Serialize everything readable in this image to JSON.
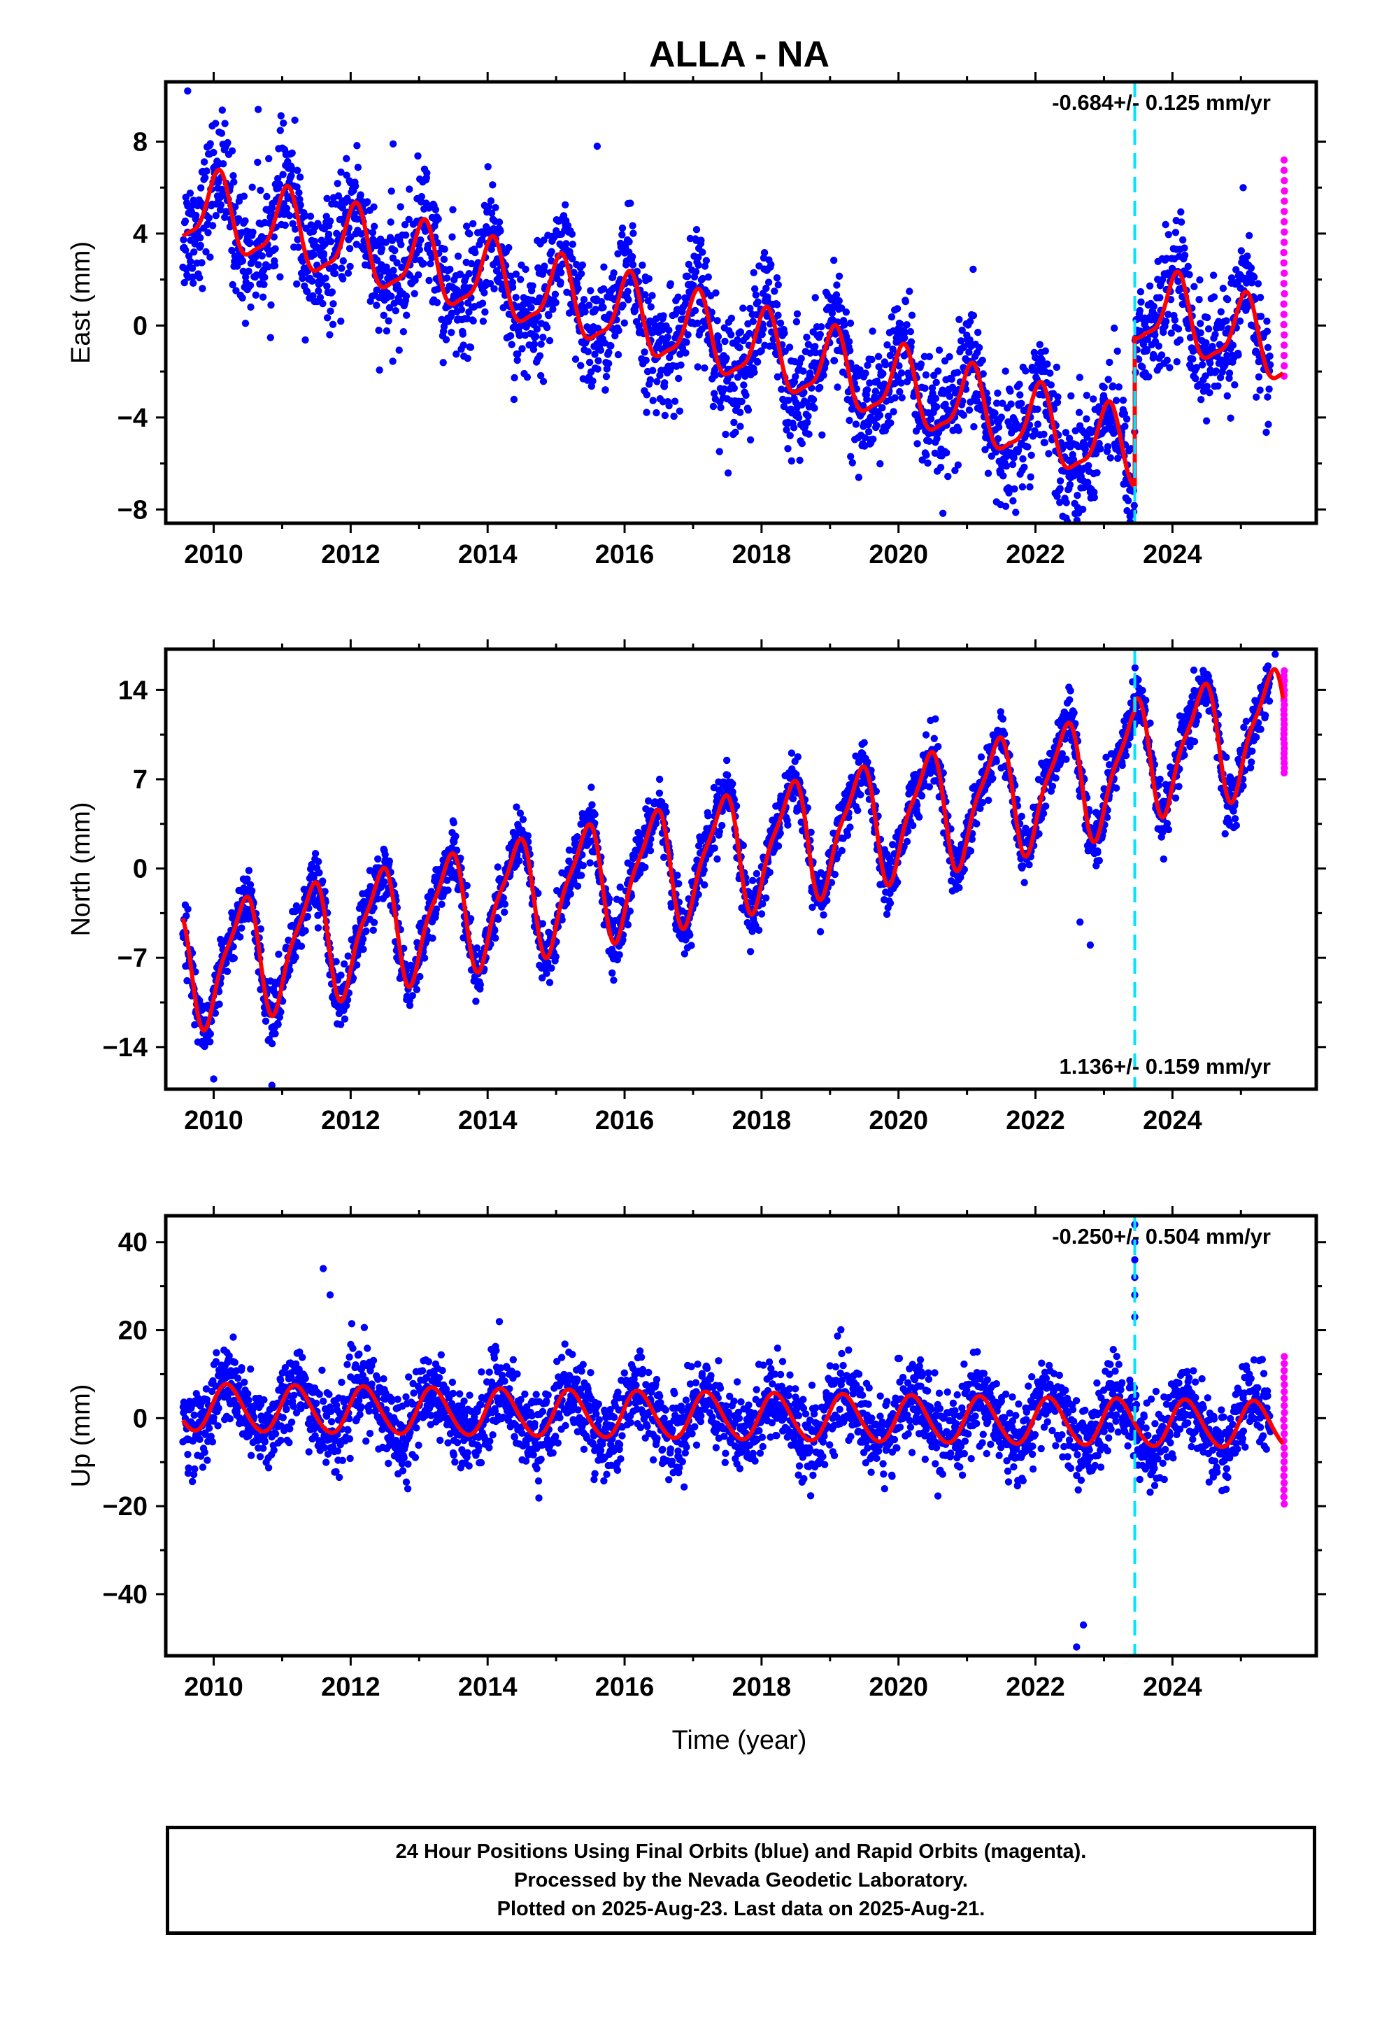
{
  "title": "ALLA - NA",
  "time_label": "Time (year)",
  "footer": {
    "line1": "24 Hour Positions Using Final Orbits (blue) and Rapid Orbits (magenta).",
    "line2": "Processed by the Nevada Geodetic Laboratory.",
    "line3": "Plotted on 2025-Aug-23. Last data on 2025-Aug-21."
  },
  "colors": {
    "final_orbits": "#0000ff",
    "rapid_orbits": "#ff00ff",
    "model_fit": "#ff0000",
    "equipment_change": "#00e5ff"
  },
  "chart_data": [
    {
      "type": "scatter",
      "ylabel": "East (mm)",
      "rate_text": "-0.684+/- 0.125 mm/yr",
      "rate_position": "top-right",
      "xlim": [
        2009.3,
        2026.1
      ],
      "ylim": [
        -8.6,
        10.6
      ],
      "xticks": [
        2010,
        2012,
        2014,
        2016,
        2018,
        2020,
        2022,
        2024
      ],
      "yticks": [
        8,
        4,
        0,
        -4,
        -8
      ],
      "ytick_labels": [
        "8",
        "4",
        "0",
        "−4",
        "−8"
      ],
      "equipment_change_year": 2023.45,
      "model": {
        "start": 2009.55,
        "end": 2025.62,
        "offset_year": 2023.45,
        "offset": 6.5,
        "intercept_2009": 5.5,
        "rate": -0.684,
        "annual_amp": 1.6,
        "annual_phase": 1.2,
        "semiannual_amp": 0.45,
        "semiannual_phase": 0.3,
        "trend_curve": -0.006
      },
      "scatter_sd": 1.3,
      "outliers": [
        [
          2009.62,
          10.2
        ],
        [
          2010.65,
          9.4
        ],
        [
          2012.62,
          7.9
        ],
        [
          2015.6,
          7.8
        ],
        [
          2019.3,
          -5.7
        ],
        [
          2023.38,
          -8.3
        ],
        [
          2023.32,
          -7.5
        ]
      ],
      "rapid_orbits": {
        "start": 2025.45,
        "end": 2025.64,
        "min": -2.2,
        "max": 7.2
      }
    },
    {
      "type": "scatter",
      "ylabel": "North (mm)",
      "rate_text": "1.136+/- 0.159 mm/yr",
      "rate_position": "bottom-right",
      "xlim": [
        2009.3,
        2026.1
      ],
      "ylim": [
        -17.3,
        17.2
      ],
      "xticks": [
        2010,
        2012,
        2014,
        2016,
        2018,
        2020,
        2022,
        2024
      ],
      "yticks": [
        14,
        7,
        0,
        -7,
        -14
      ],
      "ytick_labels": [
        "14",
        "7",
        "0",
        "−7",
        "−14"
      ],
      "equipment_change_year": 2023.45,
      "model": {
        "start": 2009.55,
        "end": 2025.62,
        "offset_year": 2023.45,
        "offset": 0.8,
        "intercept_2009": -8.5,
        "rate": 1.136,
        "annual_amp": 4.4,
        "annual_phase": -1.0,
        "semiannual_amp": 1.2,
        "semiannual_phase": 0.8,
        "trend_curve": 0.0
      },
      "scatter_sd": 1.1,
      "outliers": [
        [
          2010.0,
          -16.5
        ],
        [
          2010.85,
          -17.0
        ],
        [
          2022.65,
          -4.2
        ],
        [
          2022.8,
          -6.0
        ],
        [
          2025.5,
          16.8
        ]
      ],
      "rapid_orbits": {
        "start": 2025.45,
        "end": 2025.64,
        "min": 7.5,
        "max": 15.5
      }
    },
    {
      "type": "scatter",
      "ylabel": "Up (mm)",
      "rate_text": "-0.250+/- 0.504 mm/yr",
      "rate_position": "top-right",
      "xlim": [
        2009.3,
        2026.1
      ],
      "ylim": [
        -54,
        46
      ],
      "xticks": [
        2010,
        2012,
        2014,
        2016,
        2018,
        2020,
        2022,
        2024
      ],
      "yticks": [
        40,
        20,
        0,
        -20,
        -40
      ],
      "ytick_labels": [
        "40",
        "20",
        "0",
        "−20",
        "−40"
      ],
      "equipment_change_year": 2023.45,
      "model": {
        "start": 2009.55,
        "end": 2025.62,
        "offset_year": 2023.45,
        "offset": 0.0,
        "intercept_2009": 2.5,
        "rate": -0.25,
        "annual_amp": 5.3,
        "annual_phase": 0.3,
        "semiannual_amp": 0.4,
        "semiannual_phase": 0.0,
        "trend_curve": 0.0
      },
      "scatter_sd": 4.6,
      "outliers": [
        [
          2011.6,
          34
        ],
        [
          2011.7,
          28
        ],
        [
          2022.7,
          -47
        ],
        [
          2022.6,
          -52
        ],
        [
          2023.45,
          44
        ],
        [
          2023.45,
          40
        ],
        [
          2023.45,
          36
        ],
        [
          2023.45,
          32
        ],
        [
          2023.45,
          28
        ],
        [
          2023.45,
          23
        ]
      ],
      "rapid_orbits": {
        "start": 2025.45,
        "end": 2025.64,
        "min": -19.5,
        "max": 14
      }
    }
  ],
  "x_tick_labels": [
    "2010",
    "2012",
    "2014",
    "2016",
    "2018",
    "2020",
    "2022",
    "2024"
  ]
}
